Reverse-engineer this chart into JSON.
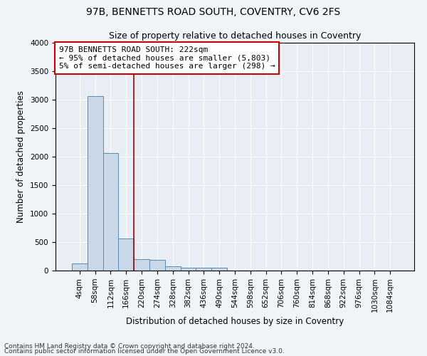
{
  "title1": "97B, BENNETTS ROAD SOUTH, COVENTRY, CV6 2FS",
  "title2": "Size of property relative to detached houses in Coventry",
  "xlabel": "Distribution of detached houses by size in Coventry",
  "ylabel": "Number of detached properties",
  "bar_labels": [
    "4sqm",
    "58sqm",
    "112sqm",
    "166sqm",
    "220sqm",
    "274sqm",
    "328sqm",
    "382sqm",
    "436sqm",
    "490sqm",
    "544sqm",
    "598sqm",
    "652sqm",
    "706sqm",
    "760sqm",
    "814sqm",
    "868sqm",
    "922sqm",
    "976sqm",
    "1030sqm",
    "1084sqm"
  ],
  "bar_values": [
    130,
    3060,
    2060,
    560,
    200,
    185,
    75,
    55,
    45,
    50,
    0,
    0,
    0,
    0,
    0,
    0,
    0,
    0,
    0,
    0,
    0
  ],
  "bar_color": "#c8d8e8",
  "bar_edge_color": "#5a8ab0",
  "ylim": [
    0,
    4000
  ],
  "yticks": [
    0,
    500,
    1000,
    1500,
    2000,
    2500,
    3000,
    3500,
    4000
  ],
  "annotation_text": "97B BENNETTS ROAD SOUTH: 222sqm\n← 95% of detached houses are smaller (5,803)\n5% of semi-detached houses are larger (298) →",
  "annotation_box_color": "#cc0000",
  "vline_color": "#aa0000",
  "vline_x": 3.5,
  "footnote1": "Contains HM Land Registry data © Crown copyright and database right 2024.",
  "footnote2": "Contains public sector information licensed under the Open Government Licence v3.0.",
  "background_color": "#f0f4f8",
  "plot_background": "#e8eef4",
  "grid_color": "#ffffff",
  "title1_fontsize": 10,
  "title2_fontsize": 9,
  "axis_label_fontsize": 8.5,
  "tick_fontsize": 7.5,
  "annotation_fontsize": 8,
  "footnote_fontsize": 6.5
}
